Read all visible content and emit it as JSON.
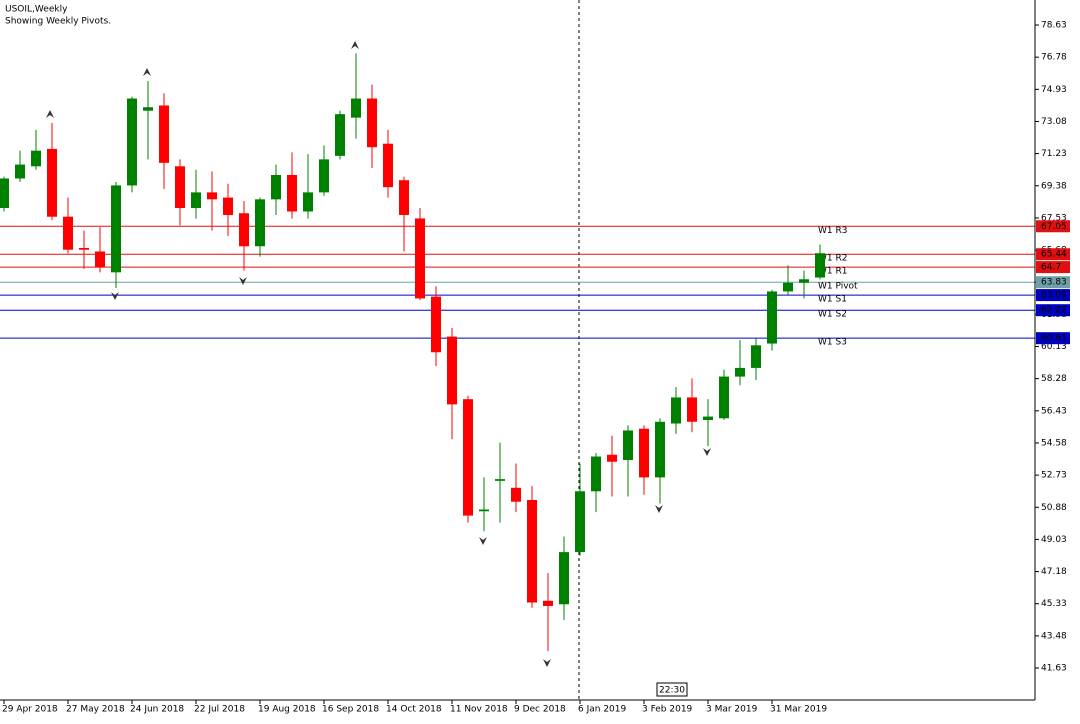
{
  "chart_data": {
    "type": "candlestick",
    "title": "USOIL,Weekly",
    "subtitle": "Showing Weekly Pivots.",
    "time_label": "22:30",
    "categories": [
      "29 Apr 2018",
      null,
      null,
      null,
      "27 May 2018",
      null,
      null,
      null,
      "24 Jun 2018",
      null,
      null,
      null,
      "22 Jul 2018",
      null,
      null,
      null,
      "19 Aug 2018",
      null,
      null,
      null,
      "16 Sep 2018",
      null,
      null,
      null,
      "14 Oct 2018",
      null,
      null,
      null,
      "11 Nov 2018",
      null,
      null,
      null,
      "9 Dec 2018",
      null,
      null,
      null,
      "6 Jan 2019",
      null,
      null,
      null,
      "3 Feb 2019",
      null,
      null,
      null,
      "3 Mar 2019",
      null,
      null,
      null,
      "31 Mar 2019",
      null,
      null,
      null
    ],
    "open": [
      68.1,
      69.8,
      70.5,
      71.5,
      67.6,
      65.8,
      65.6,
      64.4,
      69.4,
      73.7,
      74.0,
      70.5,
      68.1,
      69.0,
      68.7,
      67.8,
      65.9,
      68.6,
      70.0,
      67.9,
      69.0,
      71.1,
      73.3,
      74.4,
      71.8,
      69.7,
      67.5,
      63.0,
      60.7,
      57.1,
      50.65,
      52.4,
      52.0,
      51.3,
      45.5,
      45.3,
      48.3,
      51.8,
      53.9,
      53.6,
      55.4,
      52.6,
      55.7,
      57.2,
      55.9,
      56.0,
      58.4,
      58.9,
      60.3,
      63.3,
      63.8,
      64.1
    ],
    "high": [
      69.9,
      71.4,
      72.6,
      73.0,
      68.7,
      66.8,
      67.0,
      69.6,
      74.5,
      75.4,
      74.7,
      70.9,
      70.3,
      70.2,
      69.5,
      68.5,
      68.7,
      70.6,
      71.3,
      71.2,
      71.7,
      73.7,
      77.0,
      75.2,
      72.6,
      69.9,
      68.1,
      63.6,
      61.2,
      57.3,
      52.6,
      54.6,
      53.4,
      52.1,
      47.1,
      49.2,
      53.4,
      54.0,
      55.0,
      55.6,
      55.6,
      56.0,
      57.8,
      58.3,
      57.1,
      58.8,
      60.5,
      60.6,
      63.4,
      64.8,
      64.5,
      66.0
    ],
    "low": [
      67.9,
      69.6,
      70.3,
      67.4,
      65.5,
      64.6,
      64.4,
      63.5,
      69.0,
      70.9,
      69.2,
      67.1,
      67.5,
      66.8,
      66.5,
      64.5,
      65.3,
      67.7,
      67.5,
      67.5,
      68.8,
      70.9,
      72.1,
      70.4,
      68.7,
      65.6,
      62.8,
      59.0,
      54.8,
      50.0,
      49.5,
      50.0,
      50.6,
      45.1,
      42.6,
      44.4,
      48.1,
      50.6,
      51.5,
      51.5,
      51.6,
      51.1,
      55.1,
      55.2,
      54.4,
      55.9,
      57.9,
      58.2,
      59.9,
      63.1,
      62.9,
      64.0
    ],
    "close": [
      69.8,
      70.6,
      71.4,
      67.6,
      65.7,
      65.7,
      64.7,
      69.4,
      74.4,
      73.9,
      70.7,
      68.1,
      69.0,
      68.6,
      67.7,
      65.9,
      68.6,
      70.0,
      67.9,
      69.0,
      70.9,
      73.5,
      74.4,
      71.6,
      69.3,
      67.7,
      62.9,
      59.8,
      56.8,
      50.4,
      50.75,
      52.5,
      51.2,
      45.4,
      45.2,
      48.3,
      51.8,
      53.8,
      53.5,
      55.3,
      52.6,
      55.8,
      57.2,
      55.8,
      56.1,
      58.4,
      58.9,
      60.2,
      63.3,
      63.8,
      64.0,
      65.5
    ],
    "up_color": "#008000",
    "down_color": "#ff0000",
    "ylim": [
      39.79,
      80.07
    ],
    "yticks": [
      41.63,
      43.48,
      45.33,
      47.18,
      49.03,
      50.88,
      52.73,
      54.58,
      56.43,
      58.28,
      60.13,
      61.98,
      63.83,
      65.68,
      67.53,
      69.38,
      71.23,
      73.08,
      74.93,
      76.78,
      78.63
    ],
    "pivots": [
      {
        "name": "W1 R3",
        "value": 67.05,
        "color": "#e01010"
      },
      {
        "name": "W1 R2",
        "value": 65.44,
        "color": "#e01010"
      },
      {
        "name": "W1 R1",
        "value": 64.7,
        "color": "#e01010"
      },
      {
        "name": "W1 Pivot",
        "value": 63.83,
        "color": "#6fa0a8"
      },
      {
        "name": "W1 S1",
        "value": 63.09,
        "color": "#0000c0"
      },
      {
        "name": "W1 S2",
        "value": 62.22,
        "color": "#0000c0"
      },
      {
        "name": "W1 S3",
        "value": 60.61,
        "color": "#0000c0"
      }
    ]
  }
}
